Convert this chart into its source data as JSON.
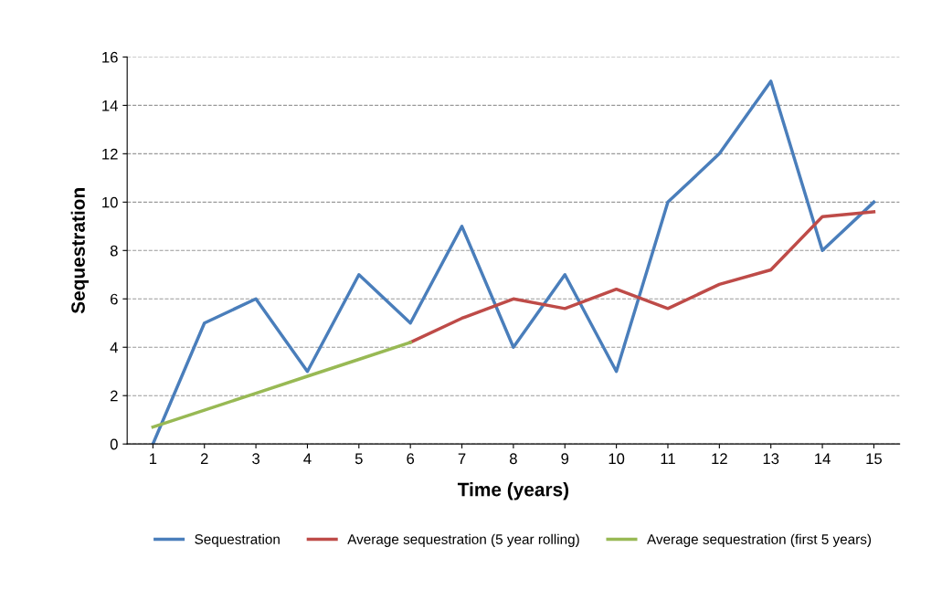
{
  "chart_data": {
    "type": "line",
    "xlabel": "Time (years)",
    "ylabel": "Sequestration",
    "categories": [
      "1",
      "2",
      "3",
      "4",
      "5",
      "6",
      "7",
      "8",
      "9",
      "10",
      "11",
      "12",
      "13",
      "14",
      "15"
    ],
    "series": [
      {
        "name": "Sequestration",
        "color": "#4a7ebb",
        "values": [
          0,
          5,
          6,
          3,
          7,
          5,
          9,
          4,
          7,
          3,
          10,
          12,
          15,
          8,
          10
        ]
      },
      {
        "name": "Average sequestration (5 year rolling)",
        "color": "#be4b48",
        "values": [
          null,
          null,
          null,
          null,
          null,
          4.2,
          5.2,
          6.0,
          5.6,
          6.4,
          5.6,
          6.6,
          7.2,
          9.4,
          9.6
        ]
      },
      {
        "name": "Average sequestration (first 5 years)",
        "color": "#98b954",
        "values": [
          0.7,
          1.4,
          2.1,
          2.8,
          3.5,
          4.2,
          null,
          null,
          null,
          null,
          null,
          null,
          null,
          null,
          null
        ]
      }
    ],
    "ylim": [
      0,
      16
    ],
    "yticks": [
      0,
      2,
      4,
      6,
      8,
      10,
      12,
      14,
      16
    ],
    "grid": "y",
    "legend": "bottom",
    "marker": "none",
    "line_style": "solid"
  }
}
